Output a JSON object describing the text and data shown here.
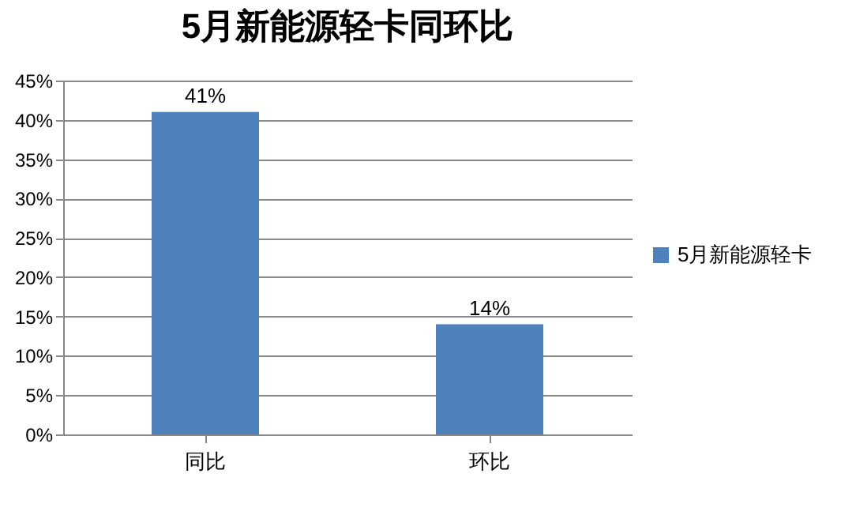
{
  "chart_data": {
    "type": "bar",
    "title": "5月新能源轻卡同环比",
    "categories": [
      "同比",
      "环比"
    ],
    "series": [
      {
        "name": "5月新能源轻卡",
        "color": "#4f81bd",
        "values": [
          41,
          14
        ],
        "value_labels": [
          "41%",
          "14%"
        ]
      }
    ],
    "ylim": [
      0,
      45
    ],
    "yticks": [
      {
        "value": 0,
        "label": "0%"
      },
      {
        "value": 5,
        "label": "5%"
      },
      {
        "value": 10,
        "label": "10%"
      },
      {
        "value": 15,
        "label": "15%"
      },
      {
        "value": 20,
        "label": "20%"
      },
      {
        "value": 25,
        "label": "25%"
      },
      {
        "value": 30,
        "label": "30%"
      },
      {
        "value": 35,
        "label": "35%"
      },
      {
        "value": 40,
        "label": "40%"
      },
      {
        "value": 45,
        "label": "45%"
      }
    ],
    "grid": "y",
    "legend": "right"
  }
}
